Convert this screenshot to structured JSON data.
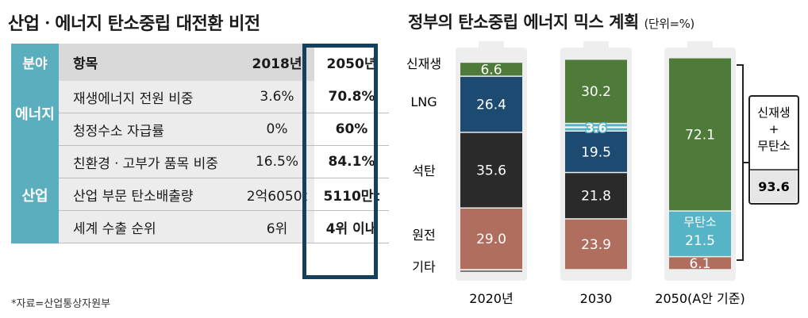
{
  "left": {
    "title": "산업ㆍ에너지 탄소중립 대전환 비전",
    "headers": {
      "category": "분야",
      "item": "항목",
      "y2018": "2018년",
      "y2050": "2050년"
    },
    "categories": {
      "energy": "에너지",
      "industry": "산업"
    },
    "rows": [
      {
        "item": "재생에너지 전원 비중",
        "y2018": "3.6%",
        "y2050": "70.8%"
      },
      {
        "item": "청정수소 자급률",
        "y2018": "0%",
        "y2050": "60%"
      },
      {
        "item": "친환경ㆍ고부가 품목 비중",
        "y2018": "16.5%",
        "y2050": "84.1%"
      },
      {
        "item": "산업 부문 탄소배출량",
        "y2018": "2억6050t",
        "y2050": "5110만t"
      },
      {
        "item": "세계 수출 순위",
        "y2018": "6위",
        "y2050": "4위 이내"
      }
    ],
    "source": "*자료=산업통상자원부"
  },
  "right": {
    "title": "정부의 탄소중립 에너지 믹스 계획",
    "unit": "(단위=%)",
    "side_labels": {
      "renewable": "신재생",
      "lng": "LNG",
      "coal": "석탄",
      "nuclear": "원전",
      "etc": "기타"
    },
    "bracket": {
      "line1": "신재생",
      "line2": "+",
      "line3": "무탄소",
      "value": "93.6"
    },
    "nocarbon_label": "무탄소"
  },
  "chart_data": {
    "type": "bar",
    "stacked": true,
    "categories": [
      "2020년",
      "2030",
      "2050(A안 기준)"
    ],
    "series": [
      {
        "name": "원전",
        "values": [
          29.0,
          23.9,
          6.1
        ],
        "labels": [
          "29.0",
          "23.9",
          "6.1"
        ],
        "color": "#b06f5e"
      },
      {
        "name": "석탄",
        "values": [
          35.6,
          21.8,
          0
        ],
        "labels": [
          "35.6",
          "21.8",
          ""
        ],
        "color": "#2a2a2a"
      },
      {
        "name": "LNG",
        "values": [
          26.4,
          19.5,
          0
        ],
        "labels": [
          "26.4",
          "19.5",
          ""
        ],
        "color": "#1d4a70"
      },
      {
        "name": "무탄소",
        "values": [
          0,
          3.6,
          21.5
        ],
        "labels": [
          "",
          "3.6",
          "21.5"
        ],
        "color": "#56b4c7"
      },
      {
        "name": "신재생",
        "values": [
          6.6,
          30.2,
          72.1
        ],
        "labels": [
          "6.6",
          "30.2",
          "72.1"
        ],
        "color": "#4e7a3a"
      }
    ]
  }
}
